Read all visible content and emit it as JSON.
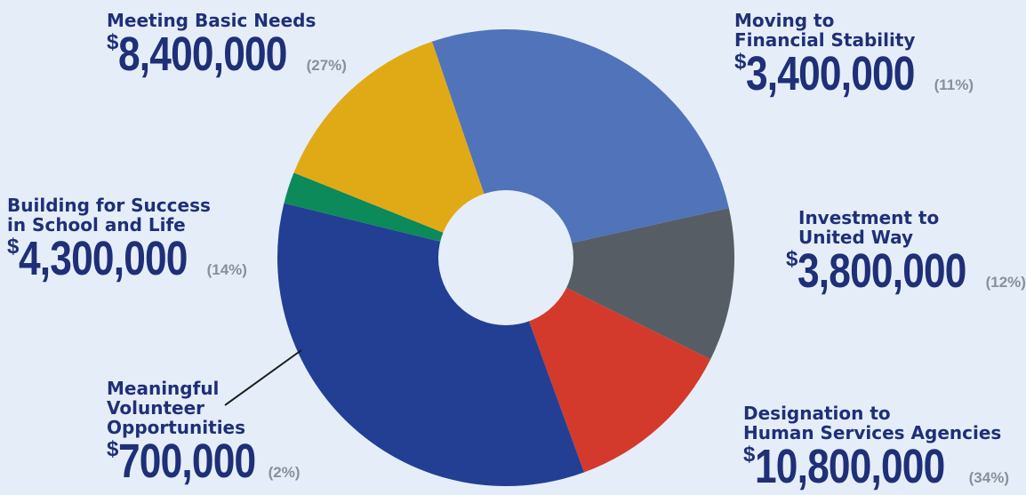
{
  "chart_data": {
    "type": "pie",
    "slices": [
      {
        "label": "Meeting Basic Needs",
        "amount": "8,400,000",
        "percent": "27%",
        "value": 8400000,
        "color": "#5173b9"
      },
      {
        "label": "Moving to\nFinancial Stability",
        "amount": "3,400,000",
        "percent": "11%",
        "value": 3400000,
        "color": "#575d65"
      },
      {
        "label": "Investment to\nUnited Way",
        "amount": "3,800,000",
        "percent": "12%",
        "value": 3800000,
        "color": "#d33a2c"
      },
      {
        "label": "Designation to\nHuman Services Agencies",
        "amount": "10,800,000",
        "percent": "34%",
        "value": 10800000,
        "color": "#233f93"
      },
      {
        "label": "Meaningful\nVolunteer\nOpportunities",
        "amount": "700,000",
        "percent": "2%",
        "value": 700000,
        "color": "#0c8a5a"
      },
      {
        "label": "Building for Success\nin School and Life",
        "amount": "4,300,000",
        "percent": "14%",
        "value": 4300000,
        "color": "#e0aa17"
      }
    ],
    "currency_symbol": "$",
    "hole_color": "#e5eef8"
  }
}
